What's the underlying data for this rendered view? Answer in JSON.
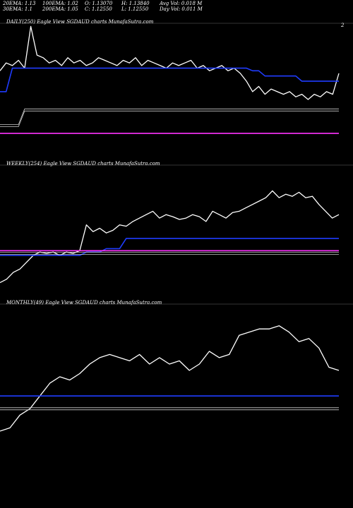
{
  "header": {
    "row1": [
      {
        "key": "ema20",
        "text": "20EMA: 1.13"
      },
      {
        "key": "ema100",
        "text": "100EMA: 1.02"
      },
      {
        "key": "open",
        "text": "O: 1.13070"
      },
      {
        "key": "high",
        "text": "H: 1.13840"
      },
      {
        "key": "avgvol",
        "text": "Avg Vol: 0.018 M"
      }
    ],
    "row2": [
      {
        "key": "ema30",
        "text": "30EMA: 1.1"
      },
      {
        "key": "ema200",
        "text": "200EMA: 1.05"
      },
      {
        "key": "close",
        "text": "C: 1.12550"
      },
      {
        "key": "low",
        "text": "L: 1.12550"
      },
      {
        "key": "dayvol",
        "text": "Day Vol: 0.011 M"
      }
    ]
  },
  "colors": {
    "background": "#000000",
    "price": "#ffffff",
    "ema_blue": "#1f3cff",
    "ema_magenta": "#ff33ff",
    "ema_double": "#cccccc",
    "grid": "#6b6b6b"
  },
  "chart_data": [
    {
      "panel": "daily",
      "type": "line",
      "title": "DAILY(250) Eagle   View  SGDAUD charts MunafaSutra.com",
      "right_tick": "2",
      "series": [
        {
          "values": [
            1.126,
            1.129,
            1.128,
            1.13,
            1.127,
            1.143,
            1.132,
            1.131,
            1.129,
            1.13,
            1.128,
            1.131,
            1.129,
            1.13,
            1.128,
            1.129,
            1.131,
            1.13,
            1.129,
            1.128,
            1.13,
            1.129,
            1.131,
            1.128,
            1.13,
            1.129,
            1.128,
            1.127,
            1.129,
            1.128,
            1.129,
            1.13,
            1.127,
            1.128,
            1.126,
            1.127,
            1.128,
            1.126,
            1.127,
            1.125,
            1.122,
            1.118,
            1.12,
            1.117,
            1.119,
            1.118,
            1.117,
            1.118,
            1.116,
            1.117,
            1.115,
            1.117,
            1.116,
            1.118,
            1.117,
            1.125
          ]
        },
        {
          "values": [
            1.118,
            1.118,
            1.127,
            1.127,
            1.127,
            1.127,
            1.127,
            1.127,
            1.127,
            1.127,
            1.127,
            1.127,
            1.127,
            1.127,
            1.127,
            1.127,
            1.127,
            1.127,
            1.127,
            1.127,
            1.127,
            1.127,
            1.127,
            1.127,
            1.127,
            1.127,
            1.127,
            1.127,
            1.127,
            1.127,
            1.127,
            1.127,
            1.127,
            1.127,
            1.127,
            1.127,
            1.127,
            1.127,
            1.127,
            1.127,
            1.127,
            1.126,
            1.126,
            1.124,
            1.124,
            1.124,
            1.124,
            1.124,
            1.124,
            1.122,
            1.122,
            1.122,
            1.122,
            1.122,
            1.122,
            1.122
          ]
        },
        {
          "values": [
            1.105,
            1.105,
            1.105,
            1.105,
            1.111,
            1.111,
            1.111,
            1.111,
            1.111,
            1.111,
            1.111,
            1.111,
            1.111,
            1.111,
            1.111,
            1.111,
            1.111,
            1.111,
            1.111,
            1.111,
            1.111,
            1.111,
            1.111,
            1.111,
            1.111,
            1.111,
            1.111,
            1.111,
            1.111,
            1.111,
            1.111,
            1.111,
            1.111,
            1.111,
            1.111,
            1.111,
            1.111,
            1.111,
            1.111,
            1.111,
            1.111,
            1.111,
            1.111,
            1.111,
            1.111,
            1.111,
            1.111,
            1.111,
            1.111,
            1.111,
            1.111,
            1.111,
            1.111,
            1.111,
            1.111,
            1.111
          ]
        },
        {
          "values": [
            1.102,
            1.102,
            1.102,
            1.102,
            1.102,
            1.102,
            1.102,
            1.102,
            1.102,
            1.102,
            1.102,
            1.102,
            1.102,
            1.102,
            1.102,
            1.102,
            1.102,
            1.102,
            1.102,
            1.102,
            1.102,
            1.102,
            1.102,
            1.102,
            1.102,
            1.102,
            1.102,
            1.102,
            1.102,
            1.102,
            1.102,
            1.102,
            1.102,
            1.102,
            1.102,
            1.102,
            1.102,
            1.102,
            1.102,
            1.102,
            1.102,
            1.102,
            1.102,
            1.102,
            1.102,
            1.102,
            1.102,
            1.102,
            1.102,
            1.102,
            1.102,
            1.102,
            1.102,
            1.102,
            1.102,
            1.102
          ]
        }
      ],
      "ylim": [
        1.095,
        1.145
      ]
    },
    {
      "panel": "weekly",
      "type": "line",
      "title": "WEEKLY(254) Eagle   View  SGDAUD charts MunafaSutra.com",
      "series": [
        {
          "values": [
            0.945,
            0.95,
            0.96,
            0.965,
            0.975,
            0.985,
            0.99,
            0.988,
            0.99,
            0.985,
            0.99,
            0.988,
            0.992,
            1.03,
            1.02,
            1.025,
            1.018,
            1.022,
            1.03,
            1.028,
            1.035,
            1.04,
            1.045,
            1.05,
            1.04,
            1.045,
            1.042,
            1.038,
            1.04,
            1.045,
            1.042,
            1.035,
            1.05,
            1.045,
            1.04,
            1.048,
            1.05,
            1.055,
            1.06,
            1.065,
            1.07,
            1.08,
            1.07,
            1.075,
            1.072,
            1.078,
            1.07,
            1.072,
            1.06,
            1.05,
            1.04,
            1.045
          ]
        },
        {
          "values": [
            0.985,
            0.985,
            0.985,
            0.985,
            0.985,
            0.985,
            0.985,
            0.985,
            0.985,
            0.985,
            0.985,
            0.985,
            0.985,
            0.99,
            0.99,
            0.99,
            0.995,
            0.995,
            0.995,
            1.01,
            1.01,
            1.01,
            1.01,
            1.01,
            1.01,
            1.01,
            1.01,
            1.01,
            1.01,
            1.01,
            1.01,
            1.01,
            1.01,
            1.01,
            1.01,
            1.01,
            1.01,
            1.01,
            1.01,
            1.01,
            1.01,
            1.01,
            1.01,
            1.01,
            1.01,
            1.01,
            1.01,
            1.01,
            1.01,
            1.01,
            1.01,
            1.01
          ]
        },
        {
          "values": [
            0.992,
            0.992,
            0.992,
            0.992,
            0.992,
            0.992,
            0.992,
            0.992,
            0.992,
            0.992,
            0.992,
            0.992,
            0.992,
            0.992,
            0.992,
            0.992,
            0.992,
            0.992,
            0.992,
            0.992,
            0.992,
            0.992,
            0.992,
            0.992,
            0.992,
            0.992,
            0.992,
            0.992,
            0.992,
            0.992,
            0.992,
            0.992,
            0.992,
            0.992,
            0.992,
            0.992,
            0.992,
            0.992,
            0.992,
            0.992,
            0.992,
            0.992,
            0.992,
            0.992,
            0.992,
            0.992,
            0.992,
            0.992,
            0.992,
            0.992,
            0.992,
            0.992
          ]
        },
        {
          "values": [
            0.988,
            0.988,
            0.988,
            0.988,
            0.988,
            0.988,
            0.988,
            0.988,
            0.988,
            0.988,
            0.988,
            0.988,
            0.988,
            0.988,
            0.988,
            0.988,
            0.988,
            0.988,
            0.988,
            0.988,
            0.988,
            0.988,
            0.988,
            0.988,
            0.988,
            0.988,
            0.988,
            0.988,
            0.988,
            0.988,
            0.988,
            0.988,
            0.988,
            0.988,
            0.988,
            0.988,
            0.988,
            0.988,
            0.988,
            0.988,
            0.988,
            0.988,
            0.988,
            0.988,
            0.988,
            0.988,
            0.988,
            0.988,
            0.988,
            0.988,
            0.988,
            0.988
          ]
        }
      ],
      "ylim": [
        0.93,
        1.12
      ]
    },
    {
      "panel": "monthly",
      "type": "line",
      "title": "MONTHLY(49) Eagle   View  SGDAUD charts MunafaSutra.com",
      "series": [
        {
          "values": [
            0.8,
            0.81,
            0.85,
            0.87,
            0.91,
            0.95,
            0.97,
            0.96,
            0.98,
            1.01,
            1.03,
            1.04,
            1.03,
            1.02,
            1.04,
            1.01,
            1.03,
            1.01,
            1.02,
            0.99,
            1.01,
            1.05,
            1.03,
            1.04,
            1.1,
            1.11,
            1.12,
            1.12,
            1.13,
            1.11,
            1.08,
            1.09,
            1.06,
            1.0,
            0.99
          ]
        },
        {
          "values": [
            0.91,
            0.91,
            0.91,
            0.91,
            0.91,
            0.91,
            0.91,
            0.91,
            0.91,
            0.91,
            0.91,
            0.91,
            0.91,
            0.91,
            0.91,
            0.91,
            0.91,
            0.91,
            0.91,
            0.91,
            0.91,
            0.91,
            0.91,
            0.91,
            0.91,
            0.91,
            0.91,
            0.91,
            0.91,
            0.91,
            0.91,
            0.91,
            0.91,
            0.91,
            0.91
          ]
        },
        {
          "values": [
            0.87,
            0.87,
            0.87,
            0.87,
            0.87,
            0.87,
            0.87,
            0.87,
            0.87,
            0.87,
            0.87,
            0.87,
            0.87,
            0.87,
            0.87,
            0.87,
            0.87,
            0.87,
            0.87,
            0.87,
            0.87,
            0.87,
            0.87,
            0.87,
            0.87,
            0.87,
            0.87,
            0.87,
            0.87,
            0.87,
            0.87,
            0.87,
            0.87,
            0.87,
            0.87
          ]
        }
      ],
      "ylim": [
        0.78,
        1.2
      ]
    }
  ]
}
